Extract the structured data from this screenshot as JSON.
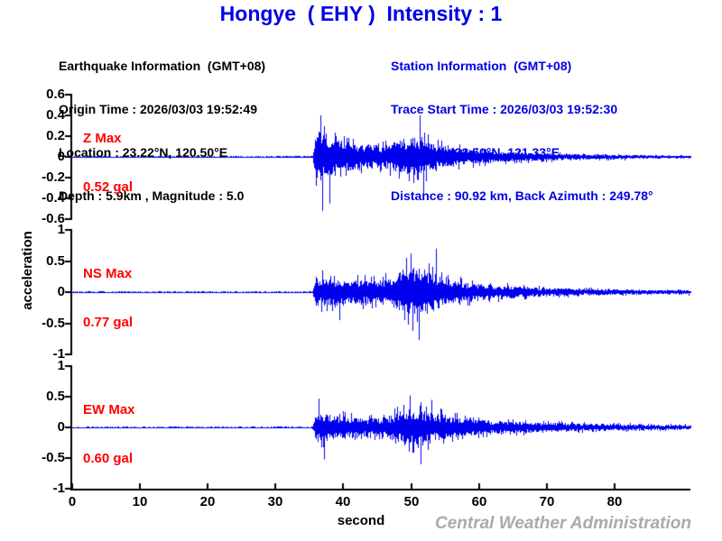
{
  "header": {
    "title": "Hongye  ( EHY )  Intensity : 1",
    "station_name": "Hongye",
    "station_code": "EHY",
    "intensity": "1",
    "earthquake_info": {
      "heading": "Earthquake Information  (GMT+08)",
      "origin_time": "Origin Time : 2026/03/03 19:52:49",
      "location": "Location : 23.22°N, 120.50°E",
      "depth_magnitude": "Depth : 5.9km , Magnitude : 5.0"
    },
    "station_info": {
      "heading": "Station Information  (GMT+08)",
      "trace_start_time": "Trace Start Time : 2026/03/03 19:52:30",
      "location": "Location : 23.50°N, 121.33°E",
      "distance_back_azimuth": "Distance : 90.92 km, Back Azimuth : 249.78°"
    }
  },
  "footer": {
    "watermark": "Central Weather Administration"
  },
  "colors": {
    "blue": "#0000e6",
    "trace": "#0000ee",
    "red": "#ff0000",
    "axis": "#000000",
    "watermark": "#aaaaaa"
  },
  "chart_data": {
    "type": "line",
    "subtype": "seismogram",
    "xlabel": "second",
    "ylabel": "acceleration",
    "unit": "gal",
    "x_range": [
      0,
      91.2
    ],
    "x_ticks": [
      "0",
      "10",
      "20",
      "30",
      "40",
      "50",
      "60",
      "70",
      "80"
    ],
    "event_onset_sec": 35.7,
    "grid": false,
    "traces": [
      {
        "id": "Z",
        "label": "Z Max",
        "max_label": "0.52 gal",
        "max_gal": 0.52,
        "ylim": [
          -0.6,
          0.6
        ],
        "y_ticks": [
          "0.6",
          "0.4",
          "0.2",
          "0",
          "-0.2",
          "-0.4",
          "-0.6"
        ],
        "envelope": [
          [
            0,
            0.007
          ],
          [
            30,
            0.008
          ],
          [
            35.4,
            0.009
          ],
          [
            35.9,
            0.3
          ],
          [
            37,
            0.33
          ],
          [
            38.5,
            0.24
          ],
          [
            41,
            0.18
          ],
          [
            44,
            0.16
          ],
          [
            46,
            0.15
          ],
          [
            48,
            0.22
          ],
          [
            50,
            0.26
          ],
          [
            52,
            0.24
          ],
          [
            54,
            0.16
          ],
          [
            57,
            0.12
          ],
          [
            60,
            0.09
          ],
          [
            65,
            0.062
          ],
          [
            70,
            0.05
          ],
          [
            75,
            0.038
          ],
          [
            80,
            0.03
          ],
          [
            85,
            0.022
          ],
          [
            91.2,
            0.018
          ]
        ],
        "peaks": [
          [
            36.6,
            0.4
          ],
          [
            36.9,
            -0.52
          ],
          [
            38.0,
            -0.45
          ],
          [
            51.3,
            0.4
          ],
          [
            51.8,
            -0.38
          ]
        ]
      },
      {
        "id": "NS",
        "label": "NS Max",
        "max_label": "0.77 gal",
        "max_gal": 0.77,
        "ylim": [
          -1,
          1
        ],
        "y_ticks": [
          "1",
          "0.5",
          "0",
          "-0.5",
          "-1"
        ],
        "envelope": [
          [
            0,
            0.012
          ],
          [
            35.4,
            0.013
          ],
          [
            35.9,
            0.3
          ],
          [
            37.5,
            0.32
          ],
          [
            40,
            0.26
          ],
          [
            43,
            0.28
          ],
          [
            45,
            0.25
          ],
          [
            47,
            0.34
          ],
          [
            49,
            0.52
          ],
          [
            51,
            0.55
          ],
          [
            53,
            0.45
          ],
          [
            55,
            0.3
          ],
          [
            58,
            0.22
          ],
          [
            62,
            0.16
          ],
          [
            66,
            0.12
          ],
          [
            70,
            0.095
          ],
          [
            75,
            0.075
          ],
          [
            80,
            0.06
          ],
          [
            85,
            0.05
          ],
          [
            91.2,
            0.045
          ]
        ],
        "peaks": [
          [
            36.9,
            0.35
          ],
          [
            39.4,
            -0.45
          ],
          [
            49.3,
            0.55
          ],
          [
            49.9,
            0.62
          ],
          [
            50.2,
            -0.62
          ],
          [
            51.1,
            -0.77
          ],
          [
            53.7,
            0.7
          ]
        ]
      },
      {
        "id": "EW",
        "label": "EW Max",
        "max_label": "0.60 gal",
        "max_gal": 0.6,
        "ylim": [
          -1,
          1
        ],
        "y_ticks": [
          "1",
          "0.5",
          "0",
          "-0.5",
          "-1"
        ],
        "envelope": [
          [
            0,
            0.012
          ],
          [
            35.4,
            0.013
          ],
          [
            35.9,
            0.33
          ],
          [
            37,
            0.33
          ],
          [
            39,
            0.28
          ],
          [
            42,
            0.22
          ],
          [
            45,
            0.2
          ],
          [
            47,
            0.28
          ],
          [
            49,
            0.4
          ],
          [
            51,
            0.42
          ],
          [
            53,
            0.35
          ],
          [
            55,
            0.28
          ],
          [
            57,
            0.22
          ],
          [
            60,
            0.18
          ],
          [
            63,
            0.14
          ],
          [
            67,
            0.12
          ],
          [
            72,
            0.1
          ],
          [
            78,
            0.08
          ],
          [
            84,
            0.065
          ],
          [
            91.2,
            0.05
          ]
        ],
        "peaks": [
          [
            36.4,
            0.47
          ],
          [
            37.2,
            -0.52
          ],
          [
            49.8,
            0.52
          ],
          [
            51.4,
            -0.6
          ],
          [
            53.0,
            0.45
          ]
        ]
      }
    ]
  }
}
